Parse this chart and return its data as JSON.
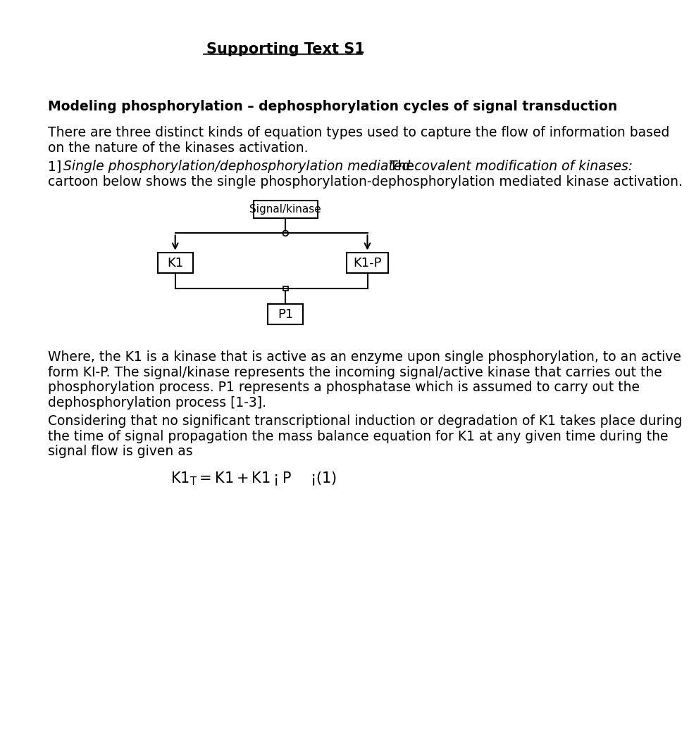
{
  "title": "Supporting Text S1",
  "background_color": "#ffffff",
  "heading": "Modeling phosphorylation – dephosphorylation cycles of signal transduction",
  "para1_line1": "There are three distinct kinds of equation types used to capture the flow of information based",
  "para1_line2": "on the nature of the kinases activation.",
  "item1_prefix": "1]  ",
  "item1_italic": "Single phosphorylation/dephosphorylation mediated covalent modification of kinases:",
  "item1_roman": " The",
  "item1_cont": "cartoon below shows the single phosphorylation-dephosphorylation mediated kinase activation.",
  "para2_lines": [
    "Where, the K1 is a kinase that is active as an enzyme upon single phosphorylation, to an active",
    "form KI-P. The signal/kinase represents the incoming signal/active kinase that carries out the",
    "phosphorylation process. P1 represents a phosphatase which is assumed to carry out the",
    "dephosphorylation process [1-3]."
  ],
  "para3_lines": [
    "Considering that no significant transcriptional induction or degradation of K1 takes place during",
    "the time of signal propagation the mass balance equation for K1 at any given time during the",
    "signal flow is given as"
  ]
}
